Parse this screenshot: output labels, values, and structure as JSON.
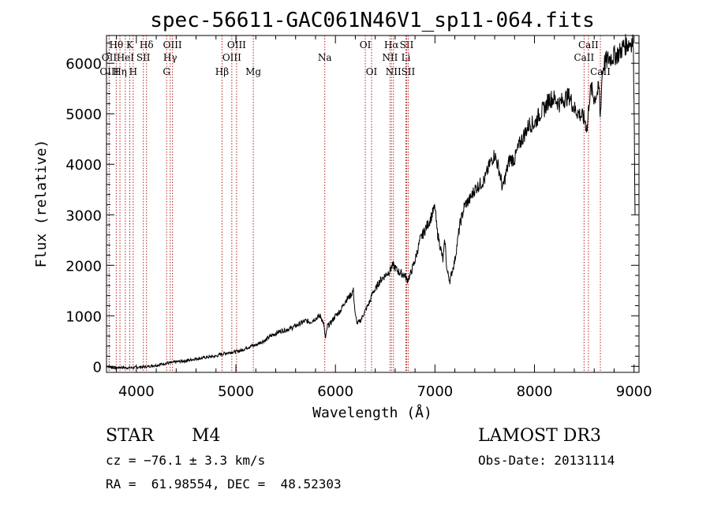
{
  "chart_data": {
    "type": "line",
    "title": "spec-56611-GAC061N46V1_sp11-064.fits",
    "xlabel": "Wavelength (Å)",
    "ylabel": "Flux (relative)",
    "xlim": [
      3700,
      9050
    ],
    "ylim": [
      -120,
      6550
    ],
    "xticks": [
      {
        "value": 4000,
        "label": "4000"
      },
      {
        "value": 5000,
        "label": "5000"
      },
      {
        "value": 6000,
        "label": "6000"
      },
      {
        "value": 7000,
        "label": "7000"
      },
      {
        "value": 8000,
        "label": "8000"
      },
      {
        "value": 9000,
        "label": "9000"
      }
    ],
    "yticks": [
      {
        "value": 0,
        "label": "0"
      },
      {
        "value": 1000,
        "label": "1000"
      },
      {
        "value": 2000,
        "label": "2000"
      },
      {
        "value": 3000,
        "label": "3000"
      },
      {
        "value": 4000,
        "label": "4000"
      },
      {
        "value": 5000,
        "label": "5000"
      },
      {
        "value": 6000,
        "label": "6000"
      }
    ],
    "series": [
      {
        "name": "spectrum",
        "color": "#000000",
        "x": [
          3700,
          3750,
          3800,
          3850,
          3900,
          3950,
          4000,
          4050,
          4100,
          4150,
          4200,
          4250,
          4300,
          4350,
          4400,
          4450,
          4500,
          4550,
          4600,
          4650,
          4700,
          4750,
          4800,
          4850,
          4900,
          4950,
          5000,
          5050,
          5100,
          5150,
          5200,
          5250,
          5300,
          5350,
          5400,
          5450,
          5500,
          5550,
          5600,
          5650,
          5700,
          5750,
          5800,
          5850,
          5880,
          5900,
          5920,
          5950,
          6000,
          6050,
          6100,
          6150,
          6180,
          6200,
          6220,
          6250,
          6300,
          6350,
          6380,
          6400,
          6420,
          6450,
          6500,
          6550,
          6560,
          6580,
          6600,
          6620,
          6650,
          6700,
          6720,
          6750,
          6800,
          6850,
          6900,
          6950,
          7000,
          7020,
          7050,
          7080,
          7100,
          7120,
          7150,
          7200,
          7250,
          7300,
          7350,
          7400,
          7450,
          7500,
          7550,
          7600,
          7650,
          7680,
          7700,
          7750,
          7800,
          7850,
          7900,
          7950,
          8000,
          8050,
          8100,
          8150,
          8200,
          8250,
          8300,
          8350,
          8400,
          8450,
          8500,
          8530,
          8550,
          8570,
          8600,
          8650,
          8660,
          8680,
          8700,
          8750,
          8800,
          8850,
          8900,
          8950,
          8990,
          9000,
          9010
        ],
        "y": [
          10,
          -20,
          -30,
          -20,
          -30,
          -30,
          -20,
          -10,
          -10,
          10,
          20,
          40,
          60,
          70,
          90,
          100,
          110,
          130,
          150,
          160,
          180,
          190,
          200,
          240,
          260,
          280,
          290,
          310,
          360,
          400,
          420,
          480,
          520,
          600,
          650,
          700,
          720,
          750,
          800,
          850,
          900,
          880,
          950,
          1000,
          850,
          550,
          800,
          850,
          1000,
          1100,
          1300,
          1400,
          1500,
          1000,
          850,
          900,
          1100,
          1300,
          1500,
          1500,
          1600,
          1700,
          1800,
          1900,
          1950,
          2000,
          1950,
          1900,
          1850,
          1800,
          1700,
          1800,
          2100,
          2500,
          2700,
          2900,
          3150,
          2700,
          2400,
          2100,
          2500,
          1900,
          1700,
          2100,
          2800,
          3200,
          3300,
          3500,
          3600,
          3700,
          4000,
          4200,
          3850,
          3500,
          3700,
          4100,
          4100,
          4400,
          4600,
          4800,
          4800,
          5000,
          5100,
          5300,
          5300,
          5200,
          5300,
          5350,
          5100,
          5000,
          4900,
          4700,
          5300,
          5500,
          5300,
          5500,
          4900,
          5800,
          6000,
          6100,
          6150,
          6200,
          6350,
          6400,
          6450,
          5400,
          3000
        ]
      }
    ],
    "lines": [
      {
        "label": "Hθ",
        "x": 3798,
        "row": 1
      },
      {
        "label": "OII",
        "x": 3727,
        "row": 2
      },
      {
        "label": "OIII",
        "x": 3727,
        "row": 3
      },
      {
        "label": "K",
        "x": 3934,
        "row": 1
      },
      {
        "label": "HeI",
        "x": 3889,
        "row": 2
      },
      {
        "label": "Hη",
        "x": 3835,
        "row": 3
      },
      {
        "label": "Hδ",
        "x": 4102,
        "row": 1
      },
      {
        "label": "SII",
        "x": 4070,
        "row": 2
      },
      {
        "label": "H",
        "x": 3968,
        "row": 3
      },
      {
        "label": "OIII",
        "x": 4363,
        "row": 1
      },
      {
        "label": "Hγ",
        "x": 4340,
        "row": 2
      },
      {
        "label": "G",
        "x": 4304,
        "row": 3
      },
      {
        "label": "OIII",
        "x": 5007,
        "row": 1
      },
      {
        "label": "OIII",
        "x": 4959,
        "row": 2
      },
      {
        "label": "Hβ",
        "x": 4861,
        "row": 3
      },
      {
        "label": "Mg",
        "x": 5175,
        "row": 3
      },
      {
        "label": "Na",
        "x": 5893,
        "row": 2
      },
      {
        "label": "OI",
        "x": 6300,
        "row": 1
      },
      {
        "label": "OI",
        "x": 6363,
        "row": 3
      },
      {
        "label": "Hα",
        "x": 6563,
        "row": 1
      },
      {
        "label": "SII",
        "x": 6716,
        "row": 1
      },
      {
        "label": "NII",
        "x": 6548,
        "row": 2
      },
      {
        "label": "Li",
        "x": 6708,
        "row": 2
      },
      {
        "label": "NII",
        "x": 6583,
        "row": 3
      },
      {
        "label": "SII",
        "x": 6731,
        "row": 3
      },
      {
        "label": "CaII",
        "x": 8542,
        "row": 1
      },
      {
        "label": "CaII",
        "x": 8498,
        "row": 2
      },
      {
        "label": "CaII",
        "x": 8662,
        "row": 3
      }
    ]
  },
  "info": {
    "class_label": "STAR",
    "subclass": "M4",
    "survey": "LAMOST DR3",
    "redshift": "cz = −76.1 ± 3.3 km/s",
    "obs_date": "Obs-Date: 20131114",
    "coords": "RA =  61.98554, DEC =  48.52303"
  }
}
